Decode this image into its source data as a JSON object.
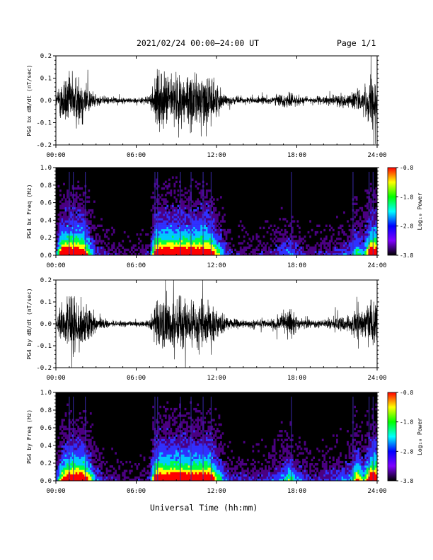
{
  "header": {
    "title": "2021/02/24  00:00–24:00 UT",
    "page": "Page 1/1"
  },
  "xlabel": "Universal Time (hh:mm)",
  "colorbar": {
    "label": "Log₁₀ Power",
    "ticks": [
      "-0.8",
      "-1.8",
      "-2.8",
      "-3.8"
    ],
    "colors": [
      "#ff0000",
      "#ffff00",
      "#00ff00",
      "#00ffff",
      "#0000ff",
      "#7f00ff",
      "#000000"
    ]
  },
  "chart_data": [
    {
      "type": "line",
      "ylabel": "PG4 bx dB/dt (nT/sec)",
      "xlim": [
        0,
        24
      ],
      "ylim": [
        -0.2,
        0.2
      ],
      "xticks": [
        "00:00",
        "06:00",
        "12:00",
        "18:00",
        "24:00"
      ],
      "yticks": [
        "0.2",
        "0.1",
        "0.0",
        "-0.1",
        "-0.2"
      ],
      "envelope": {
        "x_hours": [
          0,
          0.5,
          1,
          1.5,
          2,
          2.5,
          3,
          4,
          5,
          6,
          7,
          7.5,
          8,
          8.5,
          9,
          9.5,
          10,
          10.5,
          11,
          11.5,
          12,
          12.5,
          13,
          14,
          15,
          16,
          17,
          17.5,
          18,
          18.5,
          19,
          20,
          21,
          22,
          22.5,
          23,
          23.5,
          24
        ],
        "amplitude": [
          0.03,
          0.2,
          0.2,
          0.2,
          0.2,
          0.1,
          0.04,
          0.025,
          0.02,
          0.02,
          0.03,
          0.2,
          0.2,
          0.2,
          0.2,
          0.2,
          0.2,
          0.2,
          0.2,
          0.2,
          0.12,
          0.06,
          0.03,
          0.025,
          0.025,
          0.03,
          0.05,
          0.06,
          0.04,
          0.03,
          0.025,
          0.03,
          0.04,
          0.05,
          0.1,
          0.06,
          0.2,
          0.2
        ]
      },
      "color": "#000000"
    },
    {
      "type": "heatmap",
      "ylabel": "PG4 bx Freq (Hz)",
      "xlim": [
        0,
        24
      ],
      "ylim": [
        0,
        1.0
      ],
      "xticks": [
        "00:00",
        "06:00",
        "12:00",
        "18:00",
        "24:00"
      ],
      "yticks": [
        "1.0",
        "0.8",
        "0.6",
        "0.4",
        "0.2",
        "0.0"
      ],
      "zlim": [
        -3.8,
        -0.8
      ]
    },
    {
      "type": "line",
      "ylabel": "PG4 by dB/dt (nT/sec)",
      "xlim": [
        0,
        24
      ],
      "ylim": [
        -0.2,
        0.2
      ],
      "xticks": [
        "00:00",
        "06:00",
        "12:00",
        "18:00",
        "24:00"
      ],
      "yticks": [
        "0.2",
        "0.1",
        "0.0",
        "-0.1",
        "-0.2"
      ],
      "envelope": {
        "x_hours": [
          0,
          0.5,
          1,
          1.5,
          2,
          2.5,
          3,
          4,
          5,
          6,
          7,
          7.5,
          8,
          8.5,
          9,
          9.5,
          10,
          10.5,
          11,
          11.5,
          12,
          12.5,
          13,
          14,
          15,
          16,
          17,
          17.5,
          18,
          18.5,
          19,
          20,
          21,
          22,
          22.5,
          23,
          23.5,
          24
        ],
        "amplitude": [
          0.03,
          0.15,
          0.2,
          0.2,
          0.2,
          0.12,
          0.05,
          0.025,
          0.02,
          0.02,
          0.03,
          0.2,
          0.2,
          0.2,
          0.2,
          0.2,
          0.2,
          0.2,
          0.2,
          0.2,
          0.12,
          0.06,
          0.04,
          0.03,
          0.03,
          0.04,
          0.07,
          0.1,
          0.06,
          0.04,
          0.03,
          0.035,
          0.05,
          0.06,
          0.15,
          0.08,
          0.2,
          0.2
        ]
      },
      "color": "#000000"
    },
    {
      "type": "heatmap",
      "ylabel": "PG4 by Freq (Hz)",
      "xlim": [
        0,
        24
      ],
      "ylim": [
        0,
        1.0
      ],
      "xticks": [
        "00:00",
        "06:00",
        "12:00",
        "18:00",
        "24:00"
      ],
      "yticks": [
        "1.0",
        "0.8",
        "0.6",
        "0.4",
        "0.2",
        "0.0"
      ],
      "zlim": [
        -3.8,
        -0.8
      ]
    }
  ]
}
